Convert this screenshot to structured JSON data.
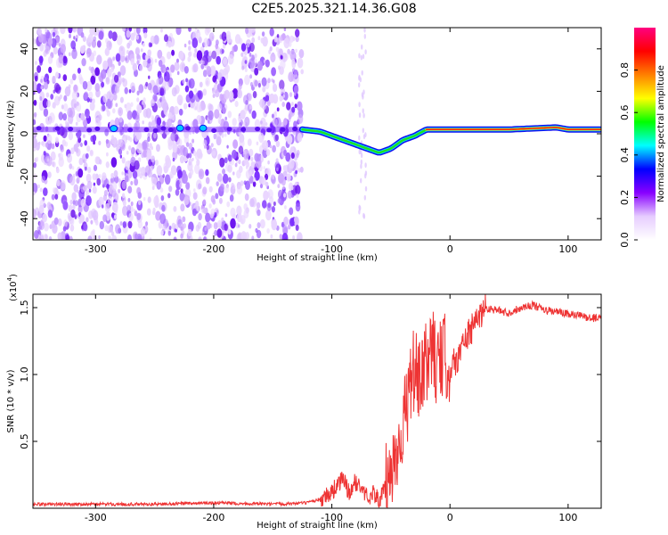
{
  "title": "C2E5.2025.321.14.36.G08",
  "chart_data": [
    {
      "type": "heatmap",
      "name": "spectrogram",
      "xlabel": "Height of straight line (km)",
      "ylabel": "Frequency (Hz)",
      "xlim": [
        -353,
        128
      ],
      "ylim": [
        -50,
        50
      ],
      "xticks": [
        -300,
        -200,
        -100,
        0,
        100
      ],
      "yticks": [
        -40,
        -20,
        0,
        20,
        40
      ],
      "xtick_labels": [
        "-300",
        "-200",
        "-100",
        "0",
        "100"
      ],
      "ytick_labels": [
        "-40",
        "-20",
        "0",
        "20",
        "40"
      ],
      "colorbar": {
        "label": "Normalized spectral amplitude",
        "range": [
          0,
          1
        ],
        "ticks": [
          0,
          0.2,
          0.4,
          0.6,
          0.8
        ],
        "tick_labels": [
          "0.0",
          "0.2",
          "0.4",
          "0.6",
          "0.8"
        ],
        "colors": [
          "#ffffff",
          "#e6ccff",
          "#8800ff",
          "#0000ff",
          "#00ffff",
          "#00ff00",
          "#ffff00",
          "#ff8000",
          "#ff0000",
          "#ff0080"
        ]
      },
      "noise_region_x": [
        -353,
        -125
      ],
      "ridge": {
        "x": [
          -353,
          -300,
          -250,
          -200,
          -150,
          -125,
          -110,
          -100,
          -90,
          -80,
          -75,
          -70,
          -65,
          -60,
          -55,
          -50,
          -45,
          -40,
          -30,
          -20,
          -10,
          0,
          50,
          90,
          100,
          128
        ],
        "freq": [
          2,
          2,
          2,
          2,
          2,
          2,
          1,
          -1,
          -3,
          -5,
          -6,
          -7,
          -8,
          -9,
          -8,
          -7,
          -5,
          -3,
          -1,
          2,
          2,
          2,
          2,
          3,
          2,
          2
        ]
      }
    },
    {
      "type": "line",
      "name": "snr",
      "xlabel": "Height of straight line (km)",
      "ylabel": "SNR (10 * v/v)",
      "y_scale_label": "(x10",
      "y_scale_exp": "4",
      "y_scale_close": ")",
      "xlim": [
        -353,
        128
      ],
      "ylim": [
        0,
        1.6
      ],
      "xticks": [
        -300,
        -200,
        -100,
        0,
        100
      ],
      "yticks": [
        0.5,
        1.0,
        1.5
      ],
      "xtick_labels": [
        "-300",
        "-200",
        "-100",
        "0",
        "100"
      ],
      "ytick_labels": [
        "0.5",
        "1.0",
        "1.5"
      ],
      "color": "#ee3333",
      "series": {
        "x": [
          -353,
          -300,
          -250,
          -200,
          -150,
          -120,
          -110,
          -100,
          -95,
          -90,
          -85,
          -80,
          -75,
          -70,
          -65,
          -60,
          -55,
          -50,
          -45,
          -40,
          -35,
          -30,
          -25,
          -20,
          -15,
          -10,
          -5,
          0,
          5,
          10,
          15,
          20,
          25,
          30,
          40,
          50,
          60,
          70,
          80,
          90,
          100,
          110,
          120,
          128
        ],
        "y": [
          0.03,
          0.03,
          0.03,
          0.04,
          0.03,
          0.04,
          0.07,
          0.12,
          0.18,
          0.22,
          0.1,
          0.2,
          0.15,
          0.08,
          0.12,
          0.05,
          0.15,
          0.25,
          0.45,
          0.6,
          0.85,
          1.05,
          0.9,
          1.1,
          1.2,
          1.05,
          1.15,
          1.05,
          1.1,
          1.2,
          1.3,
          1.35,
          1.45,
          1.5,
          1.48,
          1.46,
          1.5,
          1.52,
          1.48,
          1.47,
          1.45,
          1.44,
          1.42,
          1.43
        ]
      }
    }
  ]
}
